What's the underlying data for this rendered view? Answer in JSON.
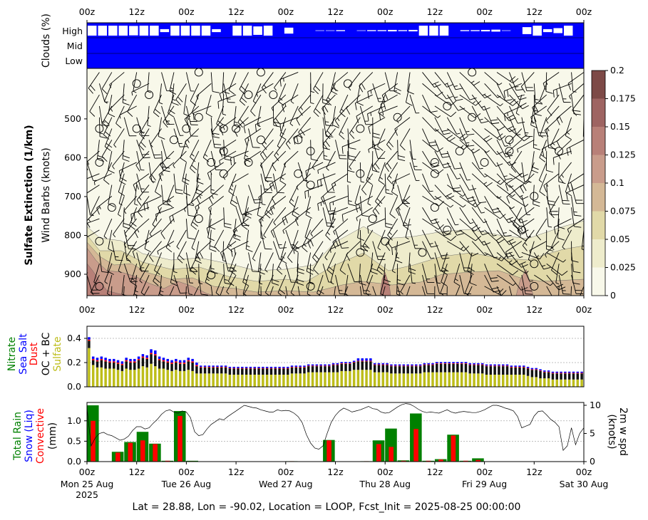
{
  "footer": "Lat = 28.88, Lon = -90.02, Location = LOOP, Fcst_Init = 2025-08-25 00:00:00",
  "time_ticks": [
    "00z",
    "12z",
    "00z",
    "12z",
    "00z",
    "12z",
    "00z",
    "12z",
    "00z",
    "12z",
    "00z"
  ],
  "date_labels": [
    "Mon 25 Aug\n2025",
    "Tue 26 Aug",
    "Wed 27 Aug",
    "Thu 28 Aug",
    "Fri 29 Aug",
    "Sat 30 Aug"
  ],
  "chart_data": [
    {
      "type": "heatmap",
      "name": "clouds",
      "ylabel": "Clouds (%)",
      "yticks": [
        "High",
        "Mid",
        "Low"
      ],
      "high_cloud_gaps": [
        1,
        1,
        1,
        1,
        0.95,
        1,
        1,
        0.3,
        1,
        1,
        1,
        1,
        0.3,
        0,
        1,
        1,
        0.85,
        1,
        0,
        0.6,
        0,
        0,
        0.05,
        0.05,
        0.1,
        0,
        0.05,
        0.1,
        0.1,
        0.15,
        0.1,
        0.15,
        1,
        1,
        1,
        0,
        0.1,
        0.1,
        0.15,
        0.2,
        0.05,
        0,
        0.7,
        1,
        0.3,
        0.5,
        1,
        0
      ],
      "color": "#0000ff"
    },
    {
      "type": "heatmap",
      "name": "sulfate_extinction",
      "title": "Sulfate Extinction (1/km)",
      "ylabel": "Wind Barbs (knots)",
      "yticks": [
        500,
        600,
        700,
        800,
        900
      ],
      "ylim": [
        955,
        370
      ],
      "colorbar": {
        "levels": [
          0,
          0.025,
          0.05,
          0.075,
          0.1,
          0.125,
          0.15,
          0.175,
          0.2
        ],
        "labels": [
          "0",
          "0.025",
          "0.05",
          "0.075",
          "0.1",
          "0.125",
          "0.15",
          "0.175",
          "0.2"
        ],
        "colors": [
          "#f8f8ea",
          "#eeeccc",
          "#e1d9a8",
          "#d4b896",
          "#c99c8b",
          "#b88078",
          "#9e6462",
          "#7d4a47"
        ]
      }
    },
    {
      "type": "bar",
      "name": "aerosol_species",
      "ylabel_parts": [
        {
          "text": "Nitrate",
          "color": "#008000"
        },
        {
          "text": "Sea Salt",
          "color": "#0000ff"
        },
        {
          "text": "Dust",
          "color": "#ff0000"
        },
        {
          "text": "OC + BC",
          "color": "#000000"
        },
        {
          "text": "Sulfate",
          "color": "#bdbd1a"
        }
      ],
      "yticks": [
        "0.0",
        "0.2",
        "0.4"
      ],
      "ylim": [
        0,
        0.5
      ],
      "sulfate": [
        0.32,
        0.18,
        0.16,
        0.16,
        0.15,
        0.15,
        0.15,
        0.14,
        0.13,
        0.15,
        0.14,
        0.14,
        0.15,
        0.17,
        0.16,
        0.19,
        0.17,
        0.15,
        0.15,
        0.14,
        0.13,
        0.14,
        0.13,
        0.13,
        0.14,
        0.13,
        0.11,
        0.11,
        0.11,
        0.11,
        0.11,
        0.11,
        0.11,
        0.11,
        0.1,
        0.1,
        0.1,
        0.1,
        0.1,
        0.1,
        0.1,
        0.1,
        0.1,
        0.1,
        0.1,
        0.1,
        0.1,
        0.1,
        0.1,
        0.11,
        0.11,
        0.11,
        0.11,
        0.12,
        0.12,
        0.12,
        0.12,
        0.12,
        0.12,
        0.12,
        0.12,
        0.13,
        0.13,
        0.13,
        0.14,
        0.14,
        0.14,
        0.14,
        0.14,
        0.12,
        0.12,
        0.12,
        0.12,
        0.11,
        0.11,
        0.11,
        0.11,
        0.11,
        0.11,
        0.11,
        0.11,
        0.12,
        0.12,
        0.12,
        0.12,
        0.12,
        0.12,
        0.12,
        0.12,
        0.12,
        0.12,
        0.12,
        0.11,
        0.11,
        0.11,
        0.11,
        0.1,
        0.1,
        0.1,
        0.1,
        0.1,
        0.1,
        0.1,
        0.1,
        0.1,
        0.1,
        0.09,
        0.08,
        0.08,
        0.07,
        0.07,
        0.07,
        0.06,
        0.06,
        0.06,
        0.06,
        0.06,
        0.06,
        0.06,
        0.06
      ],
      "ocbc": [
        0.06,
        0.04,
        0.05,
        0.06,
        0.06,
        0.05,
        0.05,
        0.05,
        0.05,
        0.06,
        0.06,
        0.06,
        0.07,
        0.07,
        0.07,
        0.08,
        0.09,
        0.07,
        0.06,
        0.06,
        0.06,
        0.06,
        0.06,
        0.06,
        0.07,
        0.07,
        0.06,
        0.05,
        0.05,
        0.05,
        0.05,
        0.05,
        0.05,
        0.05,
        0.05,
        0.05,
        0.05,
        0.05,
        0.05,
        0.05,
        0.05,
        0.05,
        0.05,
        0.05,
        0.05,
        0.05,
        0.05,
        0.05,
        0.05,
        0.05,
        0.05,
        0.05,
        0.05,
        0.05,
        0.05,
        0.05,
        0.05,
        0.05,
        0.05,
        0.06,
        0.06,
        0.06,
        0.06,
        0.06,
        0.06,
        0.07,
        0.07,
        0.07,
        0.07,
        0.06,
        0.06,
        0.06,
        0.06,
        0.06,
        0.06,
        0.06,
        0.06,
        0.06,
        0.06,
        0.06,
        0.06,
        0.06,
        0.06,
        0.06,
        0.07,
        0.07,
        0.07,
        0.07,
        0.07,
        0.07,
        0.07,
        0.07,
        0.07,
        0.07,
        0.07,
        0.07,
        0.07,
        0.07,
        0.07,
        0.07,
        0.07,
        0.07,
        0.06,
        0.06,
        0.06,
        0.06,
        0.06,
        0.06,
        0.06,
        0.06,
        0.05,
        0.05,
        0.05,
        0.05,
        0.05,
        0.05,
        0.05,
        0.05,
        0.05,
        0.05
      ],
      "seasalt": [
        0.02,
        0.02,
        0.02,
        0.02,
        0.02,
        0.02,
        0.02,
        0.02,
        0.02,
        0.02,
        0.02,
        0.02,
        0.02,
        0.02,
        0.02,
        0.03,
        0.03,
        0.02,
        0.02,
        0.02,
        0.02,
        0.02,
        0.02,
        0.02,
        0.02,
        0.02,
        0.02,
        0.01,
        0.01,
        0.01,
        0.01,
        0.01,
        0.01,
        0.01,
        0.01,
        0.01,
        0.01,
        0.01,
        0.01,
        0.01,
        0.01,
        0.01,
        0.01,
        0.01,
        0.01,
        0.01,
        0.01,
        0.01,
        0.01,
        0.01,
        0.01,
        0.01,
        0.01,
        0.01,
        0.01,
        0.01,
        0.01,
        0.01,
        0.01,
        0.01,
        0.01,
        0.01,
        0.01,
        0.01,
        0.01,
        0.02,
        0.02,
        0.02,
        0.02,
        0.01,
        0.01,
        0.01,
        0.01,
        0.01,
        0.01,
        0.01,
        0.01,
        0.01,
        0.01,
        0.01,
        0.01,
        0.01,
        0.01,
        0.01,
        0.01,
        0.01,
        0.01,
        0.01,
        0.01,
        0.01,
        0.01,
        0.01,
        0.01,
        0.01,
        0.01,
        0.01,
        0.01,
        0.01,
        0.01,
        0.01,
        0.01,
        0.01,
        0.01,
        0.01,
        0.01,
        0.01,
        0.01,
        0.01,
        0.01,
        0.01,
        0.01,
        0.01,
        0.01,
        0.01,
        0.01,
        0.01,
        0.01,
        0.01,
        0.01,
        0.01
      ],
      "dust": [
        0.01,
        0.01,
        0.01,
        0.01,
        0.01,
        0.01,
        0.01,
        0.01,
        0.01,
        0.01,
        0.01,
        0.01,
        0.01,
        0.01,
        0.01,
        0.01,
        0.01,
        0.01,
        0.01,
        0.01,
        0.01,
        0.01,
        0.01,
        0.01,
        0.01,
        0.01,
        0.01,
        0.005,
        0.005,
        0.005,
        0.005,
        0.005,
        0.005,
        0.005,
        0.005,
        0.005,
        0.005,
        0.005,
        0.005,
        0.005,
        0.005,
        0.005,
        0.005,
        0.005,
        0.005,
        0.005,
        0.005,
        0.005,
        0.005,
        0.005,
        0.005,
        0.005,
        0.005,
        0.005,
        0.005,
        0.005,
        0.005,
        0.005,
        0.005,
        0.005,
        0.005,
        0.005,
        0.005,
        0.005,
        0.005,
        0.005,
        0.005,
        0.005,
        0.005,
        0.005,
        0.005,
        0.005,
        0.005,
        0.005,
        0.005,
        0.005,
        0.005,
        0.005,
        0.005,
        0.005,
        0.005,
        0.005,
        0.005,
        0.005,
        0.005,
        0.005,
        0.005,
        0.005,
        0.005,
        0.005,
        0.005,
        0.005,
        0.005,
        0.005,
        0.005,
        0.005,
        0.005,
        0.005,
        0.005,
        0.005,
        0.005,
        0.005,
        0.005,
        0.005,
        0.005,
        0.005,
        0.005,
        0.005,
        0.005,
        0.005,
        0.005,
        0.005,
        0.005,
        0.005,
        0.005,
        0.005,
        0.005,
        0.005,
        0.005,
        0.005
      ]
    },
    {
      "type": "bar",
      "name": "precipitation",
      "ylabel_parts": [
        {
          "text": "Total Rain",
          "color": "#008000"
        },
        {
          "text": "Snow (Liq)",
          "color": "#0000ff"
        },
        {
          "text": "Convective",
          "color": "#ff0000"
        },
        {
          "text": "(mm)",
          "color": "#000000"
        }
      ],
      "yticks": [
        "0.0",
        "0.5",
        "1.0"
      ],
      "ylim": [
        0,
        1.45
      ],
      "y2label": "2m w spd\n(knots)",
      "y2ticks": [
        "0",
        "5",
        "10"
      ],
      "y2lim": [
        0,
        10.5
      ],
      "rain_bars": [
        {
          "hour": 0,
          "total": 1.38,
          "conv": 1.0
        },
        {
          "hour": 6,
          "total": 0.24,
          "conv": 0.22
        },
        {
          "hour": 9,
          "total": 0.48,
          "conv": 0.46
        },
        {
          "hour": 12,
          "total": 0.73,
          "conv": 0.52
        },
        {
          "hour": 15,
          "total": 0.44,
          "conv": 0.43
        },
        {
          "hour": 18,
          "total": 0.02,
          "conv": 0.02
        },
        {
          "hour": 21,
          "total": 1.24,
          "conv": 1.12
        },
        {
          "hour": 24,
          "total": 0.02,
          "conv": 0.01
        },
        {
          "hour": 48,
          "total": 0.01,
          "conv": 0.01
        },
        {
          "hour": 57,
          "total": 0.53,
          "conv": 0.52
        },
        {
          "hour": 66,
          "total": 0.01,
          "conv": 0.01
        },
        {
          "hour": 69,
          "total": 0.52,
          "conv": 0.43
        },
        {
          "hour": 72,
          "total": 0.81,
          "conv": 0.36
        },
        {
          "hour": 75,
          "total": 0.03,
          "conv": 0.02
        },
        {
          "hour": 78,
          "total": 1.18,
          "conv": 0.8
        },
        {
          "hour": 81,
          "total": 0.02,
          "conv": 0.02
        },
        {
          "hour": 84,
          "total": 0.06,
          "conv": 0.05
        },
        {
          "hour": 87,
          "total": 0.66,
          "conv": 0.64
        },
        {
          "hour": 90,
          "total": 0.02,
          "conv": 0.02
        },
        {
          "hour": 93,
          "total": 0.08,
          "conv": 0.04
        }
      ],
      "wind_speed": [
        9.5,
        2.8,
        4.2,
        5.0,
        5.2,
        4.8,
        4.6,
        4.2,
        3.8,
        4.0,
        4.5,
        5.5,
        6.2,
        6.2,
        5.8,
        6.0,
        6.8,
        7.5,
        8.4,
        9.0,
        9.2,
        8.8,
        8.6,
        9.0,
        8.8,
        7.8,
        5.3,
        4.6,
        4.8,
        5.8,
        6.6,
        7.1,
        7.6,
        7.4,
        8.0,
        8.5,
        9.0,
        9.5,
        10.0,
        9.8,
        9.6,
        9.5,
        9.2,
        9.0,
        8.8,
        8.8,
        9.2,
        9.0,
        9.1,
        9.0,
        8.6,
        8.0,
        6.9,
        4.8,
        3.3,
        2.4,
        2.2,
        2.8,
        5.0,
        7.0,
        8.2,
        9.0,
        9.5,
        9.2,
        8.8,
        9.0,
        9.2,
        9.5,
        9.8,
        9.4,
        9.3,
        8.8,
        8.6,
        8.7,
        9.2,
        9.7,
        10.1,
        10.3,
        10.2,
        9.8,
        9.3,
        8.9,
        8.7,
        8.8,
        8.7,
        8.6,
        8.9,
        9.2,
        8.8,
        8.6,
        8.8,
        8.9,
        8.8,
        8.7,
        8.7,
        8.9,
        9.2,
        9.6,
        10.0,
        10.0,
        9.8,
        9.5,
        9.3,
        9.0,
        8.0,
        6.0,
        6.3,
        6.6,
        8.1,
        8.9,
        9.0,
        8.3,
        7.5,
        7.0,
        6.2,
        2.0,
        2.8,
        6.0,
        3.0,
        5.0,
        6.0
      ]
    }
  ]
}
